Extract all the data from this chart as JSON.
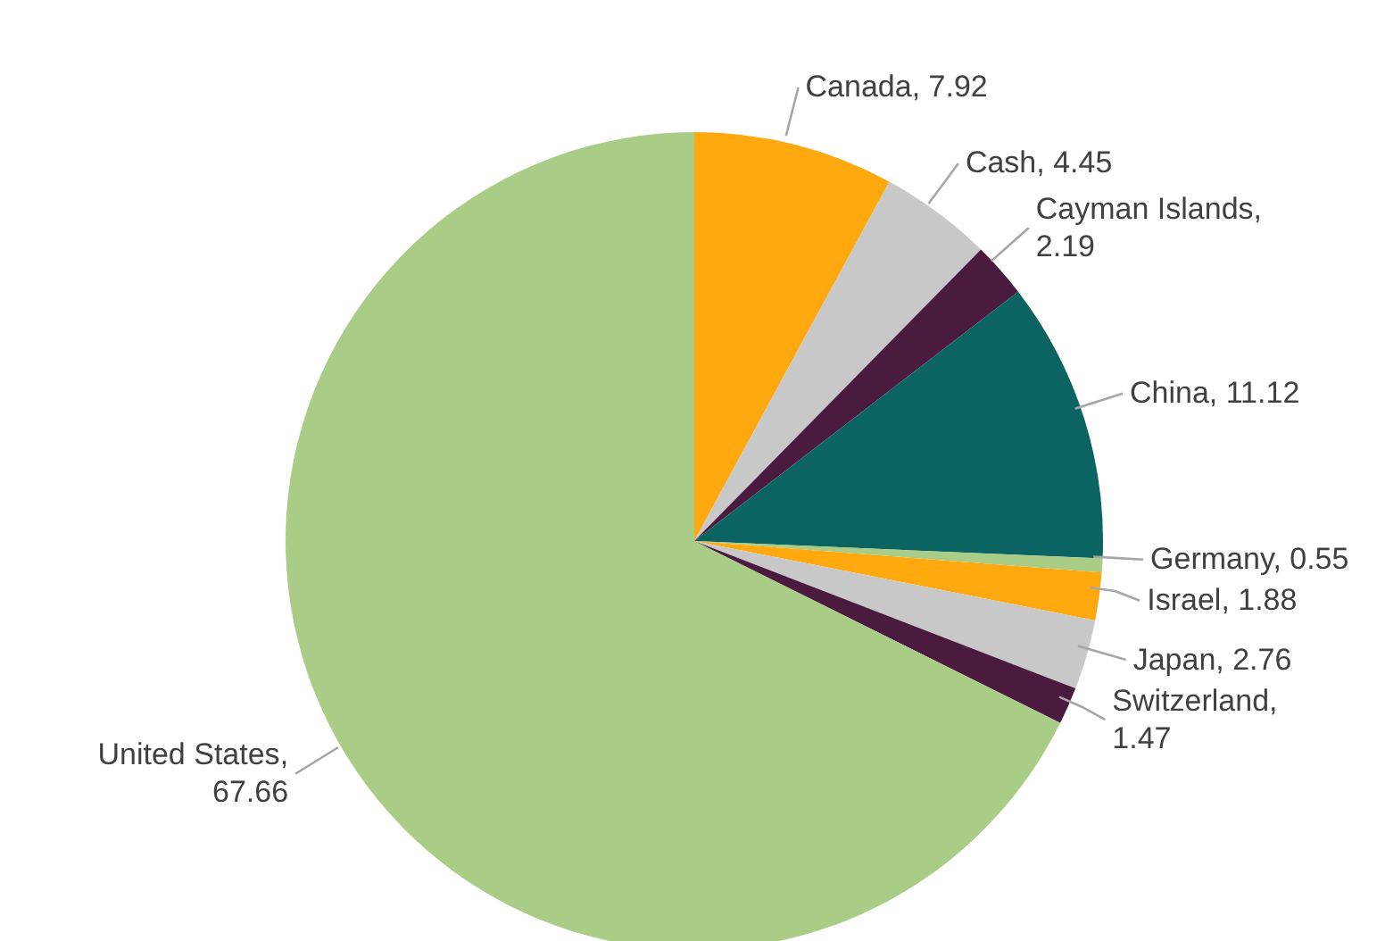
{
  "chart_data": {
    "type": "pie",
    "categories": [
      "Canada",
      "Cash",
      "Cayman Islands",
      "China",
      "Germany",
      "Israel",
      "Japan",
      "Switzerland",
      "United States"
    ],
    "values": [
      7.92,
      4.45,
      2.19,
      11.12,
      0.55,
      1.88,
      2.76,
      1.47,
      67.66
    ],
    "value_labels": [
      ", 7.92",
      ", 4.45",
      ", 2.19",
      ", 11.12",
      ", 0.55",
      ", 1.88",
      ", 2.76",
      ", 1.47",
      ", 67.66"
    ],
    "colors": [
      "#ffa90f",
      "#c8c8c8",
      "#4a1a3f",
      "#0b6462",
      "#a9cd86",
      "#ffa90f",
      "#c8c8c8",
      "#4a1a3f",
      "#a9cd86"
    ]
  }
}
